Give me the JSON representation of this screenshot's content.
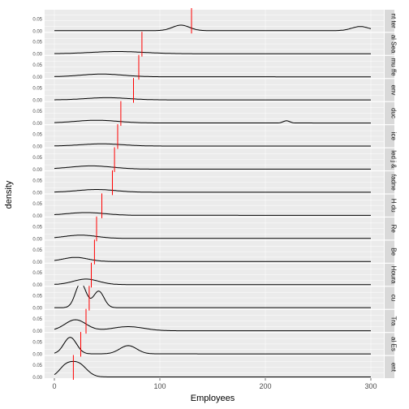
{
  "chart_data": {
    "type": "area",
    "xlabel": "Employees",
    "ylabel": "density",
    "x_ticks": [
      0,
      100,
      200,
      300
    ],
    "xlim": [
      0,
      300
    ],
    "grid": true,
    "colors": {
      "density_line": "#000000",
      "median_line": "#ff0000",
      "panel_bg": "#ebebeb",
      "strip_bg": "#d9d9d9"
    },
    "y_tick_labels": [
      "0.00",
      "0.05"
    ],
    "facet_strip_text": [
      "ent",
      "al Es",
      "Tra",
      "cu",
      "Houra",
      "Be",
      "Re",
      "H du",
      "fadne",
      "led j &",
      "ice",
      "duc",
      "env",
      "mu ffe",
      "al Sea",
      "nt ter"
    ],
    "facets": [
      {
        "median": 18,
        "peaks": [
          [
            22,
            0.5,
            8
          ],
          [
            10,
            0.3,
            6
          ]
        ]
      },
      {
        "median": 25,
        "peaks": [
          [
            15,
            0.6,
            6
          ],
          [
            70,
            0.3,
            8
          ]
        ]
      },
      {
        "median": 30,
        "peaks": [
          [
            20,
            0.4,
            10
          ],
          [
            70,
            0.15,
            15
          ]
        ]
      },
      {
        "median": 33,
        "peaks": [
          [
            25,
            0.9,
            5
          ],
          [
            42,
            0.6,
            5
          ]
        ]
      },
      {
        "median": 35,
        "peaks": [
          [
            30,
            0.2,
            12
          ]
        ]
      },
      {
        "median": 38,
        "peaks": [
          [
            20,
            0.15,
            12
          ]
        ]
      },
      {
        "median": 40,
        "peaks": [
          [
            25,
            0.12,
            15
          ]
        ]
      },
      {
        "median": 45,
        "peaks": [
          [
            30,
            0.1,
            18
          ]
        ]
      },
      {
        "median": 55,
        "peaks": [
          [
            40,
            0.1,
            18
          ]
        ]
      },
      {
        "median": 57,
        "peaks": [
          [
            35,
            0.12,
            20
          ]
        ]
      },
      {
        "median": 60,
        "peaks": [
          [
            45,
            0.08,
            20
          ]
        ]
      },
      {
        "median": 63,
        "peaks": [
          [
            40,
            0.1,
            20
          ],
          [
            220,
            0.08,
            3
          ]
        ]
      },
      {
        "median": 75,
        "peaks": [
          [
            50,
            0.08,
            20
          ]
        ]
      },
      {
        "median": 80,
        "peaks": [
          [
            45,
            0.1,
            20
          ]
        ]
      },
      {
        "median": 83,
        "peaks": [
          [
            60,
            0.08,
            25
          ]
        ]
      },
      {
        "median": 130,
        "peaks": [
          [
            120,
            0.2,
            8
          ],
          [
            290,
            0.15,
            8
          ]
        ]
      }
    ]
  }
}
